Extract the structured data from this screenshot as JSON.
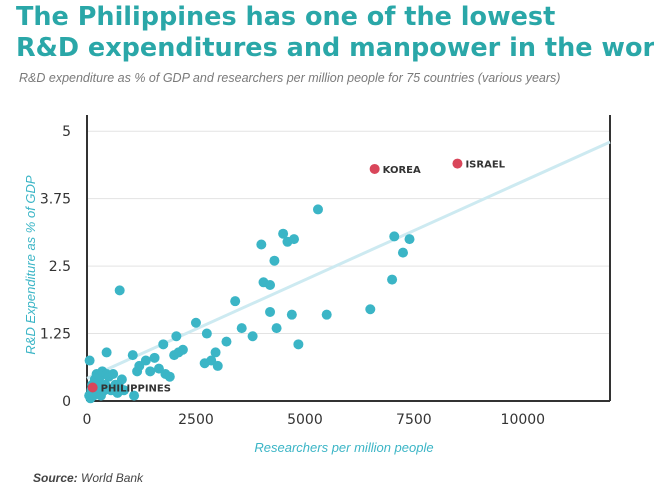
{
  "header": {
    "title_line1": "The Philippines has one of the lowest",
    "title_line2": "R&D expenditures and manpower in the world",
    "subtitle": "R&D expenditure as % of GDP and researchers per million people for 75 countries (various years)"
  },
  "footer": {
    "source_label": "Source:",
    "source_text": "World Bank"
  },
  "colors": {
    "title": "#2aa7a8",
    "points": "#3bb5c6",
    "highlight": "#d9465a",
    "trend": "#cdeaf1",
    "axis_labels": "#3bb5c6"
  },
  "chart_data": {
    "type": "scatter",
    "xlabel": "Researchers per million people",
    "ylabel": "R&D Expenditure as % of GDP",
    "xlim": [
      0,
      12000
    ],
    "ylim": [
      0,
      5.3
    ],
    "xticks": [
      "0",
      "2500",
      "5000",
      "7500",
      "10000"
    ],
    "xtick_values": [
      0,
      2500,
      5000,
      7500,
      10000
    ],
    "yticks": [
      "0",
      "1.25",
      "2.5",
      "3.75",
      "5"
    ],
    "ytick_values": [
      0,
      1.25,
      2.5,
      3.75,
      5
    ],
    "grid": "horizontal",
    "trendline": {
      "x": [
        0,
        12000
      ],
      "y": [
        0.42,
        4.8
      ]
    },
    "series": [
      {
        "points": [
          [
            50,
            0.1
          ],
          [
            80,
            0.05
          ],
          [
            100,
            0.2
          ],
          [
            120,
            0.3
          ],
          [
            150,
            0.1
          ],
          [
            180,
            0.4
          ],
          [
            200,
            0.15
          ],
          [
            220,
            0.5
          ],
          [
            250,
            0.25
          ],
          [
            270,
            0.35
          ],
          [
            300,
            0.45
          ],
          [
            320,
            0.1
          ],
          [
            350,
            0.55
          ],
          [
            400,
            0.2
          ],
          [
            420,
            0.3
          ],
          [
            450,
            0.5
          ],
          [
            500,
            0.45
          ],
          [
            550,
            0.2
          ],
          [
            600,
            0.5
          ],
          [
            650,
            0.3
          ],
          [
            700,
            0.15
          ],
          [
            750,
            0.25
          ],
          [
            800,
            0.4
          ],
          [
            850,
            0.2
          ],
          [
            60,
            0.75
          ],
          [
            450,
            0.9
          ],
          [
            750,
            2.05
          ],
          [
            1050,
            0.85
          ],
          [
            1150,
            0.55
          ],
          [
            1200,
            0.65
          ],
          [
            1350,
            0.75
          ],
          [
            1450,
            0.55
          ],
          [
            1550,
            0.8
          ],
          [
            1650,
            0.6
          ],
          [
            1750,
            1.05
          ],
          [
            1800,
            0.5
          ],
          [
            1900,
            0.45
          ],
          [
            2000,
            0.85
          ],
          [
            2050,
            1.2
          ],
          [
            2100,
            0.9
          ],
          [
            1080,
            0.1
          ],
          [
            2200,
            0.95
          ],
          [
            2500,
            1.45
          ],
          [
            2700,
            0.7
          ],
          [
            2750,
            1.25
          ],
          [
            2850,
            0.75
          ],
          [
            2950,
            0.9
          ],
          [
            3000,
            0.65
          ],
          [
            3200,
            1.1
          ],
          [
            3400,
            1.85
          ],
          [
            3550,
            1.35
          ],
          [
            3800,
            1.2
          ],
          [
            4000,
            2.9
          ],
          [
            4050,
            2.2
          ],
          [
            4200,
            2.15
          ],
          [
            4200,
            1.65
          ],
          [
            4300,
            2.6
          ],
          [
            4350,
            1.35
          ],
          [
            4500,
            3.1
          ],
          [
            4600,
            2.95
          ],
          [
            4700,
            1.6
          ],
          [
            4750,
            3.0
          ],
          [
            4850,
            1.05
          ],
          [
            5300,
            3.55
          ],
          [
            5500,
            1.6
          ],
          [
            6500,
            1.7
          ],
          [
            7000,
            2.25
          ],
          [
            7050,
            3.05
          ],
          [
            7250,
            2.75
          ],
          [
            7400,
            3.0
          ]
        ]
      },
      {
        "name": "highlighted",
        "labeled_points": [
          {
            "label": "PHILIPPINES",
            "x": 130,
            "y": 0.25
          },
          {
            "label": "KOREA",
            "x": 6600,
            "y": 4.3
          },
          {
            "label": "ISRAEL",
            "x": 8500,
            "y": 4.4
          }
        ]
      }
    ]
  }
}
